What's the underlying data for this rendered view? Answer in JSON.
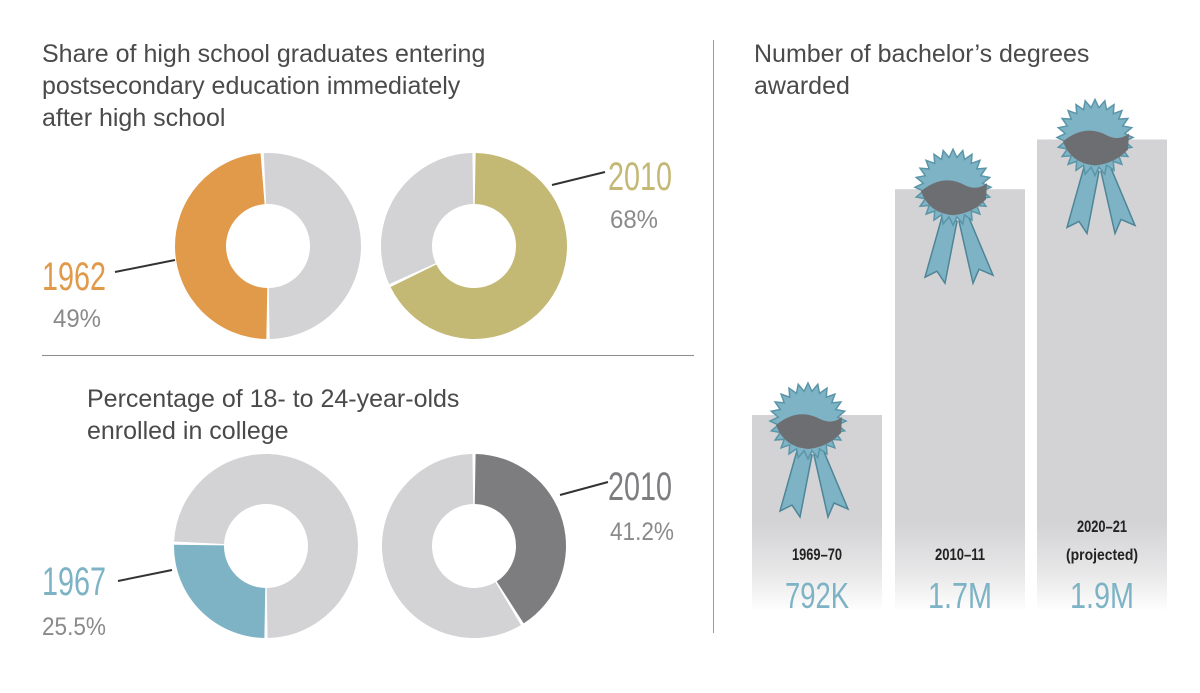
{
  "colors": {
    "orange": "#e09a4a",
    "olive": "#c3b975",
    "teal": "#7db3c5",
    "dark_gray": "#7d7d80",
    "light_gray": "#d3d3d5",
    "label_gray": "#8a8a8c",
    "bar_gray": "#d3d3d5",
    "ribbon_dark": "#6d6e71"
  },
  "sections": {
    "top_title_line1": "Share of high school graduates entering",
    "top_title_line2": "postsecondary education immediately",
    "top_title_line3": "after high school",
    "bottom_title_line1": "Percentage of 18- to 24-year-olds",
    "bottom_title_line2": "enrolled in college",
    "right_title_line1": "Number of bachelor’s degrees",
    "right_title_line2": "awarded"
  },
  "chart_data": [
    {
      "type": "pie",
      "title": "Share of high school graduates entering postsecondary education immediately after high school",
      "donuts": [
        {
          "year": "1962",
          "value": 49,
          "label": "49%",
          "color": "#e09a4a"
        },
        {
          "year": "2010",
          "value": 68,
          "label": "68%",
          "color": "#c3b975"
        }
      ]
    },
    {
      "type": "pie",
      "title": "Percentage of 18- to 24-year-olds enrolled in college",
      "donuts": [
        {
          "year": "1967",
          "value": 25.5,
          "label": "25.5%",
          "color": "#7db3c5"
        },
        {
          "year": "2010",
          "value": 41.2,
          "label": "41.2%",
          "color": "#7d7d80"
        }
      ]
    },
    {
      "type": "bar",
      "title": "Number of bachelor’s degrees awarded",
      "categories": [
        "1969–70",
        "2010–11",
        "2020–21"
      ],
      "category_notes": [
        "",
        "",
        "(projected)"
      ],
      "values": [
        792000,
        1700000,
        1900000
      ],
      "value_labels": [
        "792K",
        "1.7M",
        "1.9M"
      ],
      "ylim": [
        0,
        2300000
      ]
    }
  ]
}
